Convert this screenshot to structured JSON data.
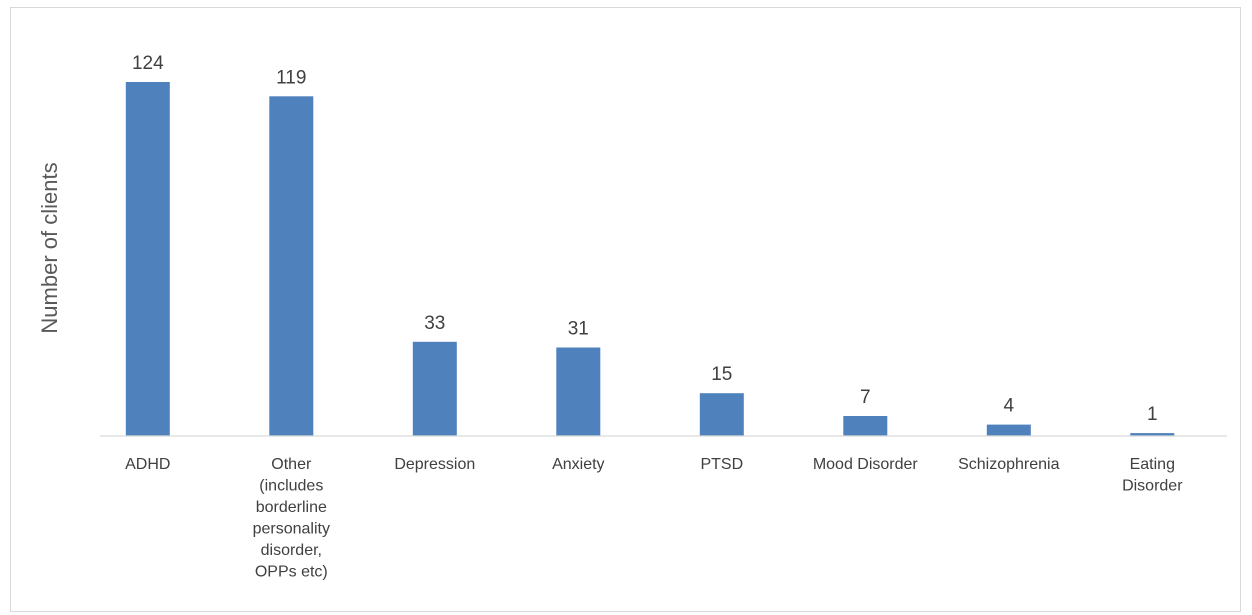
{
  "chart_data": {
    "type": "bar",
    "title": "",
    "xlabel": "",
    "ylabel": "Number of clients",
    "ylim": [
      0,
      124
    ],
    "grid": false,
    "legend": "none",
    "bar_color": "#4f81bd",
    "categories": [
      [
        "ADHD"
      ],
      [
        "Other",
        "(includes",
        "borderline",
        "personality",
        "disorder,",
        "OPPs etc)"
      ],
      [
        "Depression"
      ],
      [
        "Anxiety"
      ],
      [
        "PTSD"
      ],
      [
        "Mood Disorder"
      ],
      [
        "Schizophrenia"
      ],
      [
        "Eating",
        "Disorder"
      ]
    ],
    "values": [
      124,
      119,
      33,
      31,
      15,
      7,
      4,
      1
    ],
    "data_labels": [
      "124",
      "119",
      "33",
      "31",
      "15",
      "7",
      "4",
      "1"
    ]
  }
}
